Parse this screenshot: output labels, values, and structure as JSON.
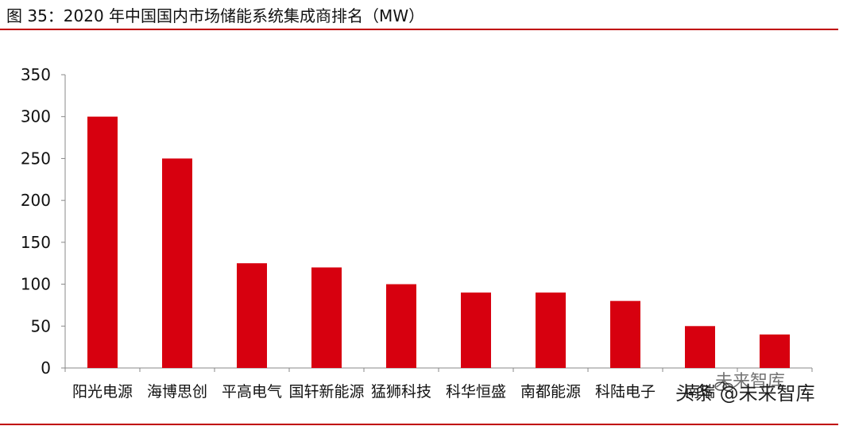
{
  "title": "图 35：2020 年中国国内市场储能系统集成商排名（MW）",
  "colors": {
    "bar": "#d7000f",
    "rule": "#c00000",
    "axis": "#888888",
    "text": "#111111"
  },
  "chart_data": {
    "type": "bar",
    "title": "",
    "xlabel": "",
    "ylabel": "",
    "categories": [
      "阳光电源",
      "海博思创",
      "平高电气",
      "国轩新能源",
      "猛狮科技",
      "科华恒盛",
      "南都能源",
      "科陆电子",
      "南瑞",
      ""
    ],
    "values": [
      300,
      250,
      125,
      120,
      100,
      90,
      90,
      80,
      50,
      40
    ],
    "ylim": [
      0,
      350
    ],
    "yticks": [
      0,
      50,
      100,
      150,
      200,
      250,
      300,
      350
    ],
    "grid": false,
    "legend": "none"
  },
  "watermark": {
    "line1": "未来智库",
    "line2": "头条 @未来智库"
  }
}
